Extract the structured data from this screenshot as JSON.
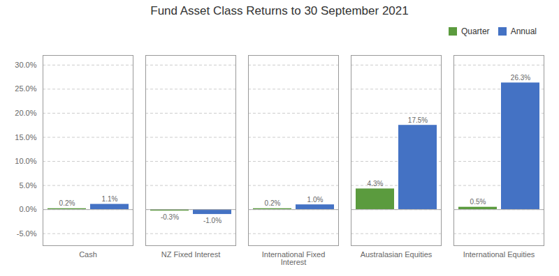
{
  "chart_data": {
    "type": "bar",
    "title": "Fund Asset Class Returns to 30 September 2021",
    "categories": [
      "Cash",
      "NZ Fixed Interest",
      "International Fixed\nInterest",
      "Australasian Equities",
      "International Equities"
    ],
    "series": [
      {
        "name": "Quarter",
        "color": "#5B9B3E",
        "values": [
          0.2,
          -0.3,
          0.2,
          4.3,
          0.5
        ],
        "value_labels": [
          "0.2%",
          "-0.3%",
          "0.2%",
          "4.3%",
          "0.5%"
        ]
      },
      {
        "name": "Annual",
        "color": "#4472C4",
        "values": [
          1.1,
          -1.0,
          1.0,
          17.5,
          26.3
        ],
        "value_labels": [
          "1.1%",
          "-1.0%",
          "1.0%",
          "17.5%",
          "26.3%"
        ]
      }
    ],
    "ylim": [
      -7.5,
      32.0
    ],
    "yticks": [
      {
        "value": -5.0,
        "label": "-5.0%"
      },
      {
        "value": 0.0,
        "label": "0.0%"
      },
      {
        "value": 5.0,
        "label": "5.0%"
      },
      {
        "value": 10.0,
        "label": "10.0%"
      },
      {
        "value": 15.0,
        "label": "15.0%"
      },
      {
        "value": 20.0,
        "label": "20.0%"
      },
      {
        "value": 25.0,
        "label": "25.0%"
      },
      {
        "value": 30.0,
        "label": "30.0%"
      }
    ],
    "grid": true,
    "legend": "upper right",
    "data_labels": true
  }
}
